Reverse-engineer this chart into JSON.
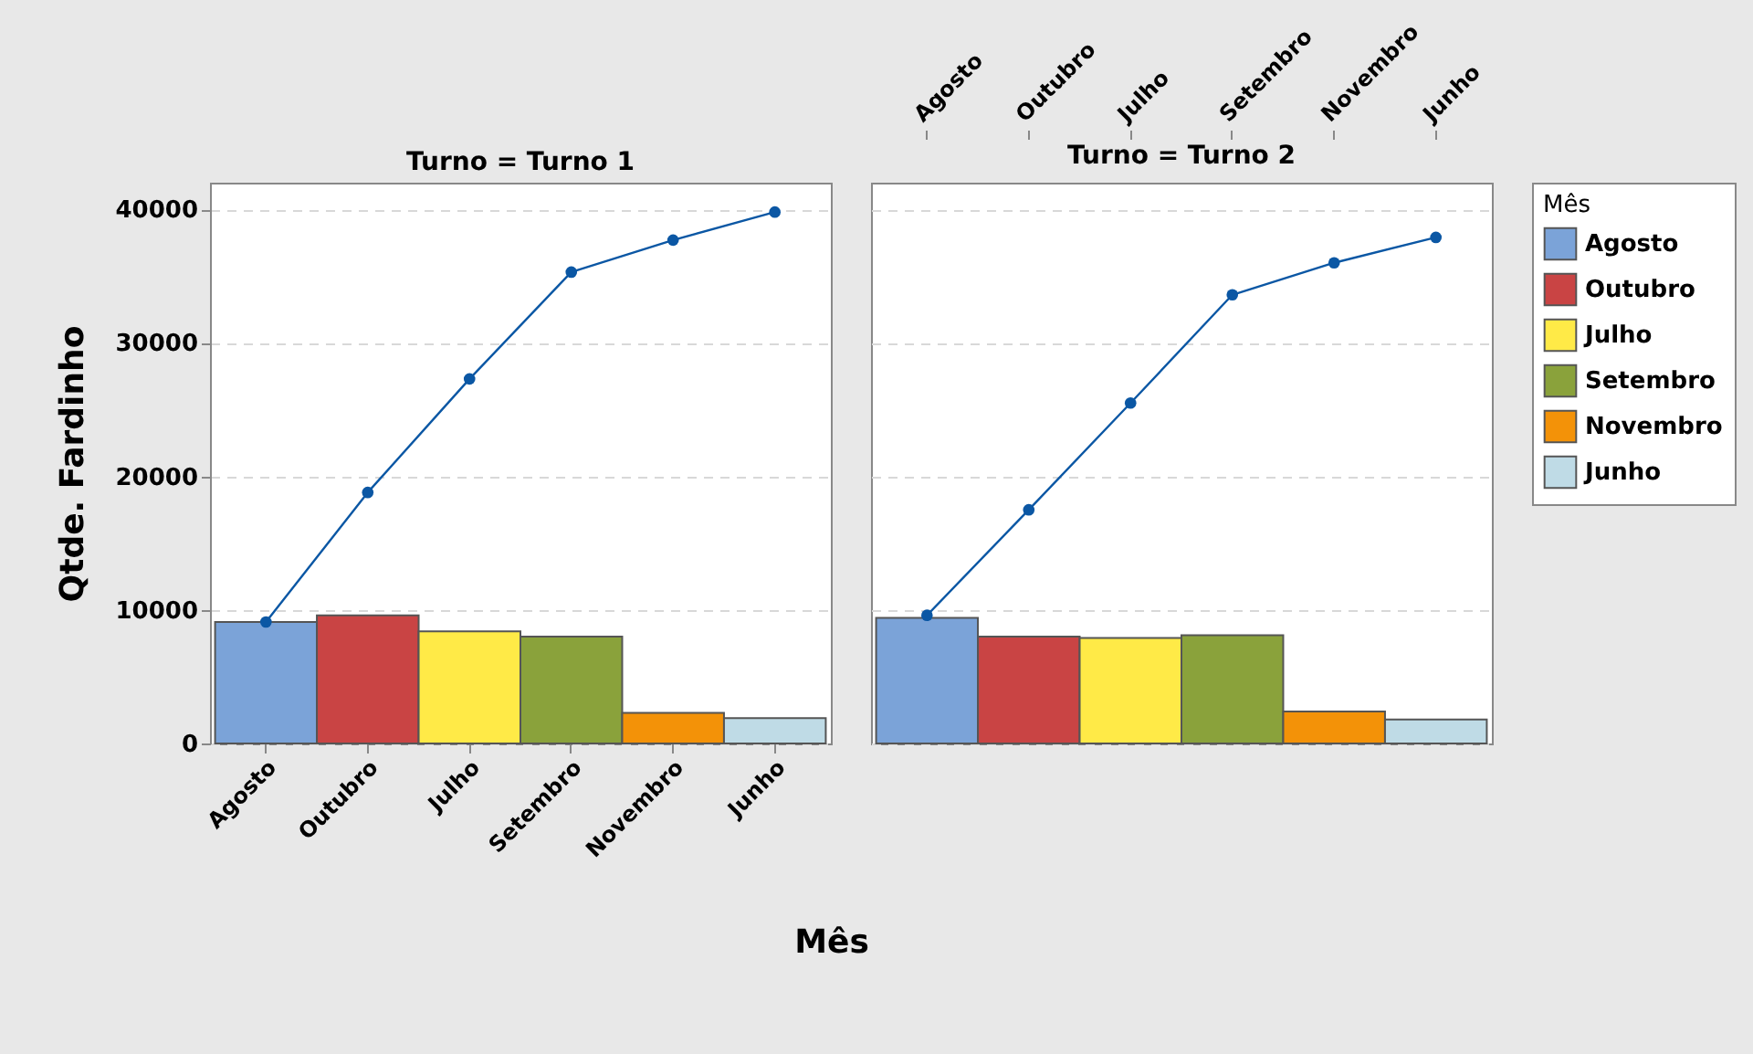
{
  "chart_data": [
    {
      "type": "bar",
      "title": "Turno = Turno 1",
      "xlabel": "Mês",
      "ylabel": "Qtde. Fardinho",
      "categories": [
        "Agosto",
        "Outubro",
        "Julho",
        "Setembro",
        "Novembro",
        "Junho"
      ],
      "ylim": [
        0,
        42000
      ],
      "yticks": [
        0,
        10000,
        20000,
        30000,
        40000
      ],
      "grid": "y",
      "legend": false,
      "series": [
        {
          "color": "#7ba3d8",
          "values": [
            9100,
            null,
            null,
            null,
            null,
            null
          ]
        },
        {
          "color": "#c94444",
          "values": [
            null,
            9600,
            null,
            null,
            null,
            null
          ]
        },
        {
          "color": "#ffea47",
          "values": [
            null,
            null,
            8400,
            null,
            null,
            null
          ]
        },
        {
          "color": "#8aa23b",
          "values": [
            null,
            null,
            null,
            8000,
            null,
            null
          ]
        },
        {
          "color": "#f39208",
          "values": [
            null,
            null,
            null,
            null,
            2300,
            null
          ]
        },
        {
          "color": "#bfdbe6",
          "values": [
            null,
            null,
            null,
            null,
            null,
            1900
          ]
        },
        {
          "type": "line",
          "color": "#0b57a4",
          "marker": "circle",
          "values": [
            9100,
            18800,
            27300,
            35300,
            37700,
            39800
          ]
        }
      ]
    },
    {
      "type": "bar",
      "title": "Turno = Turno 2",
      "legend_title": "Mês",
      "categories": [
        "Agosto",
        "Outubro",
        "Julho",
        "Setembro",
        "Novembro",
        "Junho"
      ],
      "ylim": [
        0,
        42000
      ],
      "yticks": [
        0,
        10000,
        20000,
        30000,
        40000
      ],
      "grid": "y",
      "legend": "right",
      "tick_labels": "x",
      "series": [
        {
          "name": "Agosto",
          "color": "#7ba3d8",
          "values": [
            9400,
            null,
            null,
            null,
            null,
            null
          ]
        },
        {
          "name": "Outubro",
          "color": "#c94444",
          "values": [
            null,
            8000,
            null,
            null,
            null,
            null
          ]
        },
        {
          "name": "Julho",
          "color": "#ffea47",
          "values": [
            null,
            null,
            7900,
            null,
            null,
            null
          ]
        },
        {
          "name": "Setembro",
          "color": "#8aa23b",
          "values": [
            null,
            null,
            null,
            8100,
            null,
            null
          ]
        },
        {
          "name": "Novembro",
          "color": "#f39208",
          "values": [
            null,
            null,
            null,
            null,
            2400,
            null
          ]
        },
        {
          "name": "Junho",
          "color": "#bfdbe6",
          "values": [
            null,
            null,
            null,
            null,
            null,
            1800
          ]
        },
        {
          "type": "line",
          "color": "#0b57a4",
          "marker": "circle",
          "values": [
            9600,
            17500,
            25500,
            33600,
            36000,
            37900
          ]
        }
      ]
    }
  ]
}
